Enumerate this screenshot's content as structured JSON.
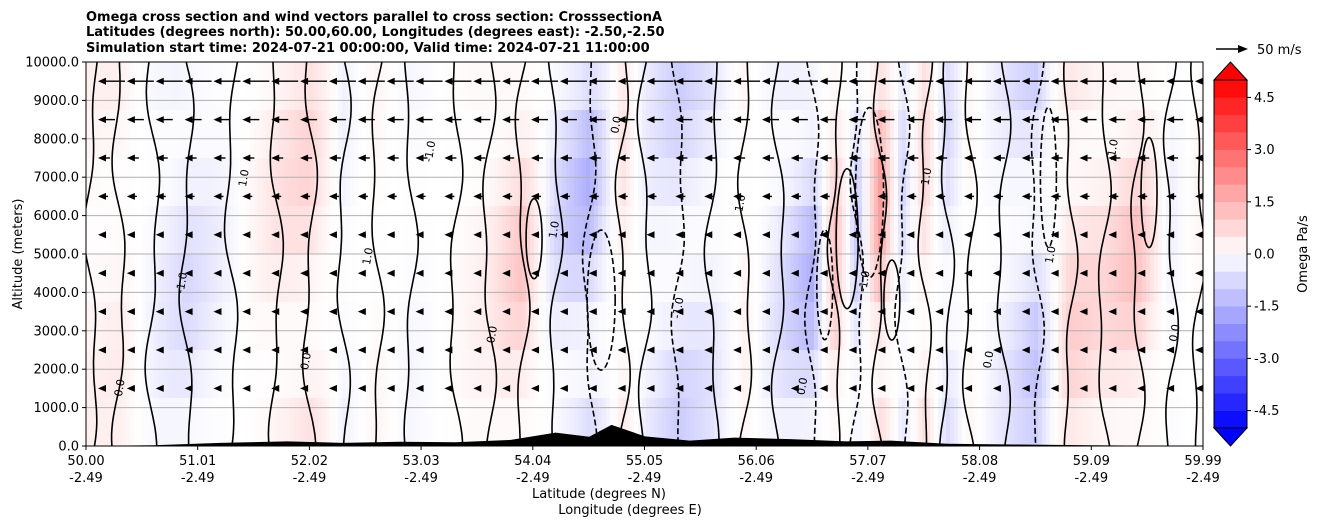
{
  "chart_data": {
    "type": "heatmap",
    "title_lines": [
      "Omega cross section and wind vectors parallel to cross section: CrosssectionA",
      "Latitudes (degrees north): 50.00,60.00, Longitudes (degrees east): -2.50,-2.50",
      "Simulation start time: 2024-07-21 00:00:00, Valid time: 2024-07-21 11:00:00"
    ],
    "ylabel": "Altitude (meters)",
    "xlabel_lines": [
      "Latitude (degrees N)",
      "Longitude (degrees E)"
    ],
    "ylim": [
      0,
      10000
    ],
    "y_ticks": [
      "0.0",
      "1000.0",
      "2000.0",
      "3000.0",
      "4000.0",
      "5000.0",
      "6000.0",
      "7000.0",
      "8000.0",
      "9000.0",
      "10000.0"
    ],
    "x_ticks": [
      {
        "lat": "50.00",
        "lon": "-2.49"
      },
      {
        "lat": "51.01",
        "lon": "-2.49"
      },
      {
        "lat": "52.02",
        "lon": "-2.49"
      },
      {
        "lat": "53.03",
        "lon": "-2.49"
      },
      {
        "lat": "54.04",
        "lon": "-2.49"
      },
      {
        "lat": "55.05",
        "lon": "-2.49"
      },
      {
        "lat": "56.06",
        "lon": "-2.49"
      },
      {
        "lat": "57.07",
        "lon": "-2.49"
      },
      {
        "lat": "58.08",
        "lon": "-2.49"
      },
      {
        "lat": "59.09",
        "lon": "-2.49"
      },
      {
        "lat": "59.99",
        "lon": "-2.49"
      }
    ],
    "grid": true,
    "colorbar": {
      "label": "Omega Pa/s",
      "min": -5.0,
      "max": 5.0,
      "ticks": [
        "-4.5",
        "-3.0",
        "-1.5",
        "0.0",
        "1.5",
        "3.0",
        "4.5"
      ],
      "extend": "both",
      "colormap": "bwr"
    },
    "quiver_key": {
      "label": "50 m/s"
    },
    "contour_levels": [
      -1.0,
      0.0,
      1.0
    ],
    "contour_labels": [
      "0.0",
      "-1.0",
      "1.0",
      "0.0",
      "1.0",
      "-1.0",
      "0.0",
      "1.0",
      "0.0",
      "-1.0",
      "1.0",
      "0.0",
      "-1.0",
      "1.0",
      "0.0",
      "1.0",
      "-1.0",
      "0.0"
    ],
    "omega_bands": [
      {
        "lat": 50.05,
        "value": 0.3
      },
      {
        "lat": 50.3,
        "value": 0.4
      },
      {
        "lat": 50.6,
        "value": -0.3
      },
      {
        "lat": 50.9,
        "value": -0.8
      },
      {
        "lat": 51.3,
        "value": -0.2
      },
      {
        "lat": 51.7,
        "value": 0.6
      },
      {
        "lat": 52.0,
        "value": 0.9
      },
      {
        "lat": 52.3,
        "value": -0.3
      },
      {
        "lat": 52.6,
        "value": 0.2
      },
      {
        "lat": 52.9,
        "value": -0.2
      },
      {
        "lat": 53.3,
        "value": 0.1
      },
      {
        "lat": 53.6,
        "value": 0.4
      },
      {
        "lat": 53.9,
        "value": 1.2
      },
      {
        "lat": 54.2,
        "value": -0.8
      },
      {
        "lat": 54.5,
        "value": -1.6
      },
      {
        "lat": 54.8,
        "value": 0.6
      },
      {
        "lat": 55.0,
        "value": -0.4
      },
      {
        "lat": 55.3,
        "value": -1.0
      },
      {
        "lat": 55.6,
        "value": -0.6
      },
      {
        "lat": 55.9,
        "value": 0.3
      },
      {
        "lat": 56.2,
        "value": -0.7
      },
      {
        "lat": 56.5,
        "value": -1.6
      },
      {
        "lat": 56.7,
        "value": 1.4
      },
      {
        "lat": 56.9,
        "value": -1.2
      },
      {
        "lat": 57.1,
        "value": 2.0
      },
      {
        "lat": 57.3,
        "value": -0.9
      },
      {
        "lat": 57.5,
        "value": 0.9
      },
      {
        "lat": 57.7,
        "value": -0.8
      },
      {
        "lat": 57.9,
        "value": 0.2
      },
      {
        "lat": 58.2,
        "value": -0.5
      },
      {
        "lat": 58.5,
        "value": -1.2
      },
      {
        "lat": 58.8,
        "value": 1.0
      },
      {
        "lat": 59.1,
        "value": 0.8
      },
      {
        "lat": 59.4,
        "value": 1.3
      },
      {
        "lat": 59.7,
        "value": -0.3
      },
      {
        "lat": 59.95,
        "value": 0.2
      }
    ],
    "terrain": [
      {
        "lat": 50.0,
        "alt": 0
      },
      {
        "lat": 50.6,
        "alt": 20
      },
      {
        "lat": 51.2,
        "alt": 80
      },
      {
        "lat": 51.8,
        "alt": 120
      },
      {
        "lat": 52.3,
        "alt": 80
      },
      {
        "lat": 52.8,
        "alt": 110
      },
      {
        "lat": 53.3,
        "alt": 100
      },
      {
        "lat": 53.8,
        "alt": 160
      },
      {
        "lat": 54.2,
        "alt": 350
      },
      {
        "lat": 54.5,
        "alt": 240
      },
      {
        "lat": 54.7,
        "alt": 550
      },
      {
        "lat": 55.0,
        "alt": 250
      },
      {
        "lat": 55.4,
        "alt": 140
      },
      {
        "lat": 55.8,
        "alt": 220
      },
      {
        "lat": 56.3,
        "alt": 180
      },
      {
        "lat": 56.8,
        "alt": 120
      },
      {
        "lat": 57.2,
        "alt": 140
      },
      {
        "lat": 57.7,
        "alt": 60
      },
      {
        "lat": 58.3,
        "alt": 40
      },
      {
        "lat": 59.0,
        "alt": 20
      },
      {
        "lat": 59.99,
        "alt": 0
      }
    ],
    "wind_rows": [
      {
        "alt": 9500,
        "speed": 25
      },
      {
        "alt": 8500,
        "speed": 15
      },
      {
        "alt": 7500,
        "speed": 10
      },
      {
        "alt": 6500,
        "speed": 8
      },
      {
        "alt": 5500,
        "speed": 6
      },
      {
        "alt": 4500,
        "speed": 5
      },
      {
        "alt": 3500,
        "speed": 4
      },
      {
        "alt": 2500,
        "speed": 3
      },
      {
        "alt": 1500,
        "speed": 2
      }
    ]
  }
}
